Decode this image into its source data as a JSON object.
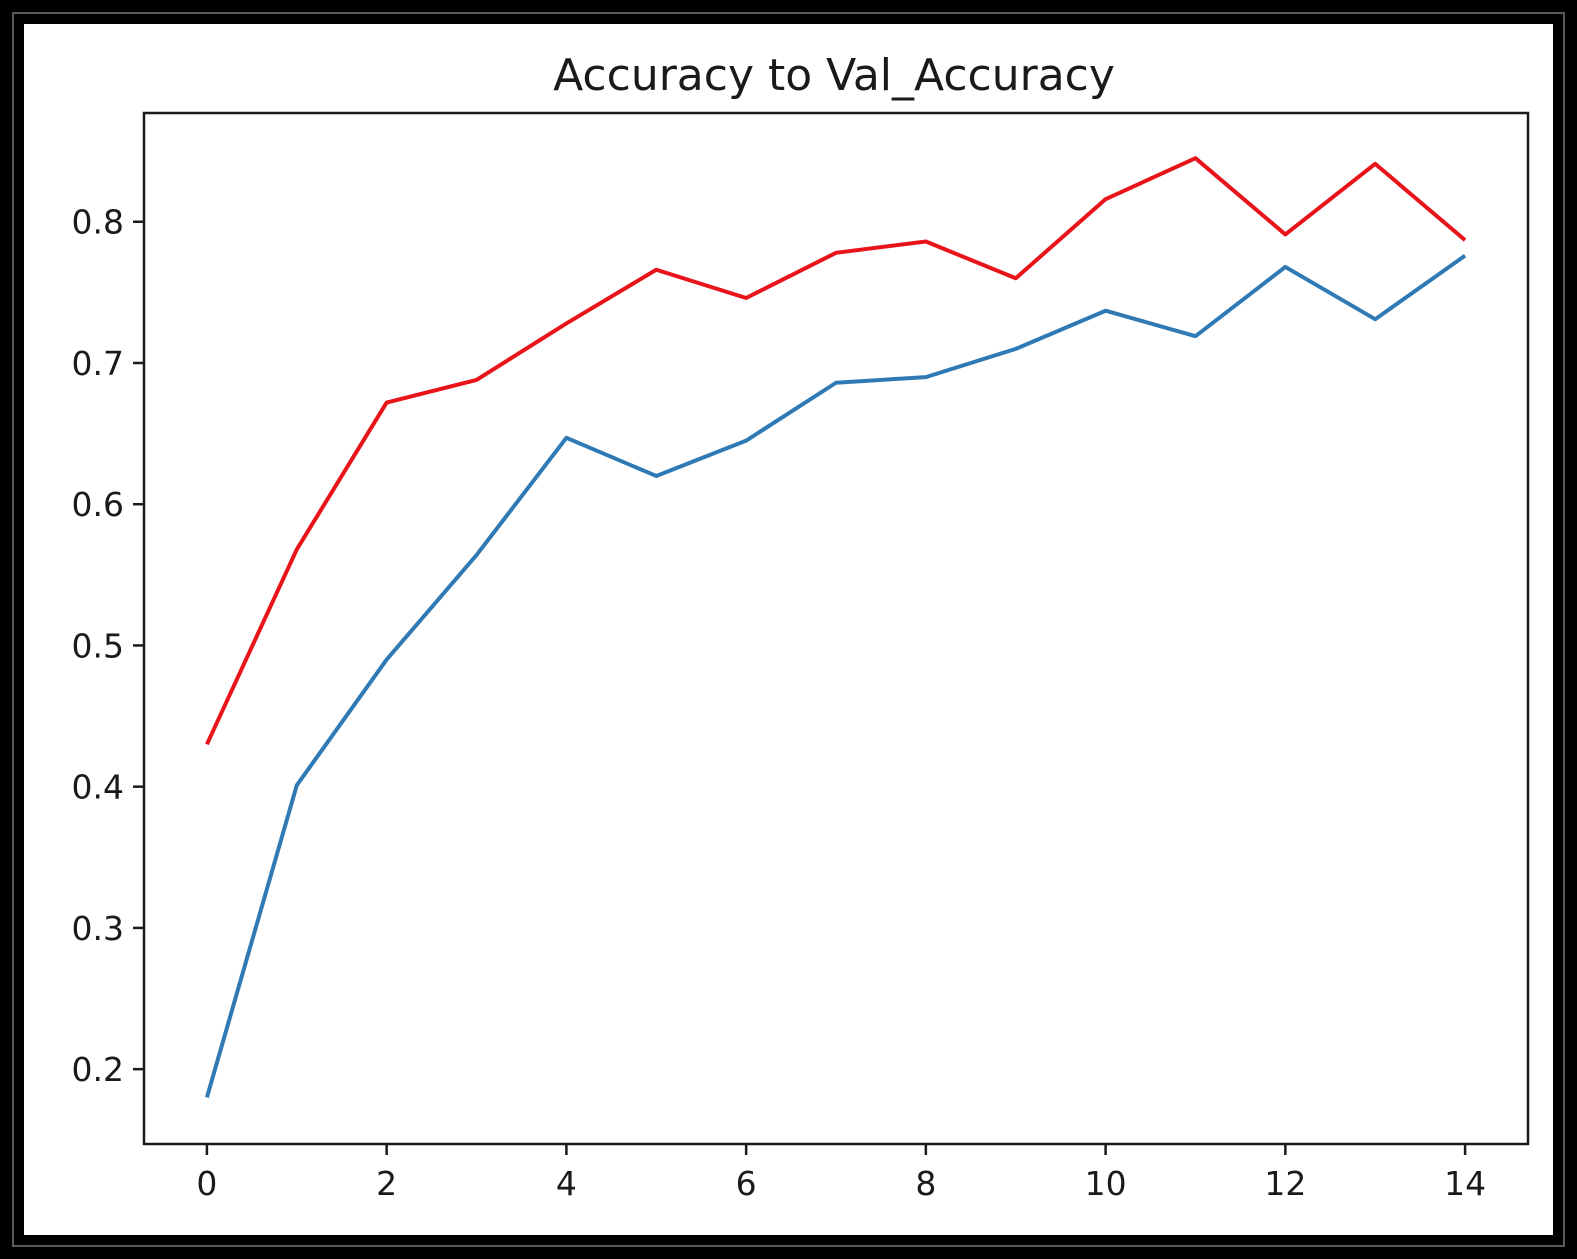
{
  "chart_data": {
    "type": "line",
    "title": "Accuracy to Val_Accuracy",
    "xlabel": "",
    "ylabel": "",
    "x": [
      0,
      1,
      2,
      3,
      4,
      5,
      6,
      7,
      8,
      9,
      10,
      11,
      12,
      13,
      14
    ],
    "xlim": [
      -0.7,
      14.7
    ],
    "ylim": [
      0.147,
      0.877
    ],
    "xticks": [
      0,
      2,
      4,
      6,
      8,
      10,
      12,
      14
    ],
    "yticks": [
      0.2,
      0.3,
      0.4,
      0.5,
      0.6,
      0.7,
      0.8
    ],
    "xtick_labels": [
      "0",
      "2",
      "4",
      "6",
      "8",
      "10",
      "12",
      "14"
    ],
    "ytick_labels": [
      "0.2",
      "0.3",
      "0.4",
      "0.5",
      "0.6",
      "0.7",
      "0.8"
    ],
    "grid": false,
    "series": [
      {
        "color": "#e8141a",
        "values": [
          0.43,
          0.568,
          0.672,
          0.688,
          0.728,
          0.766,
          0.746,
          0.778,
          0.786,
          0.76,
          0.816,
          0.845,
          0.791,
          0.841,
          0.787
        ]
      },
      {
        "color": "#2f7ab5",
        "values": [
          0.18,
          0.401,
          0.49,
          0.564,
          0.647,
          0.62,
          0.645,
          0.686,
          0.69,
          0.71,
          0.737,
          0.719,
          0.768,
          0.731,
          0.776
        ]
      }
    ]
  }
}
